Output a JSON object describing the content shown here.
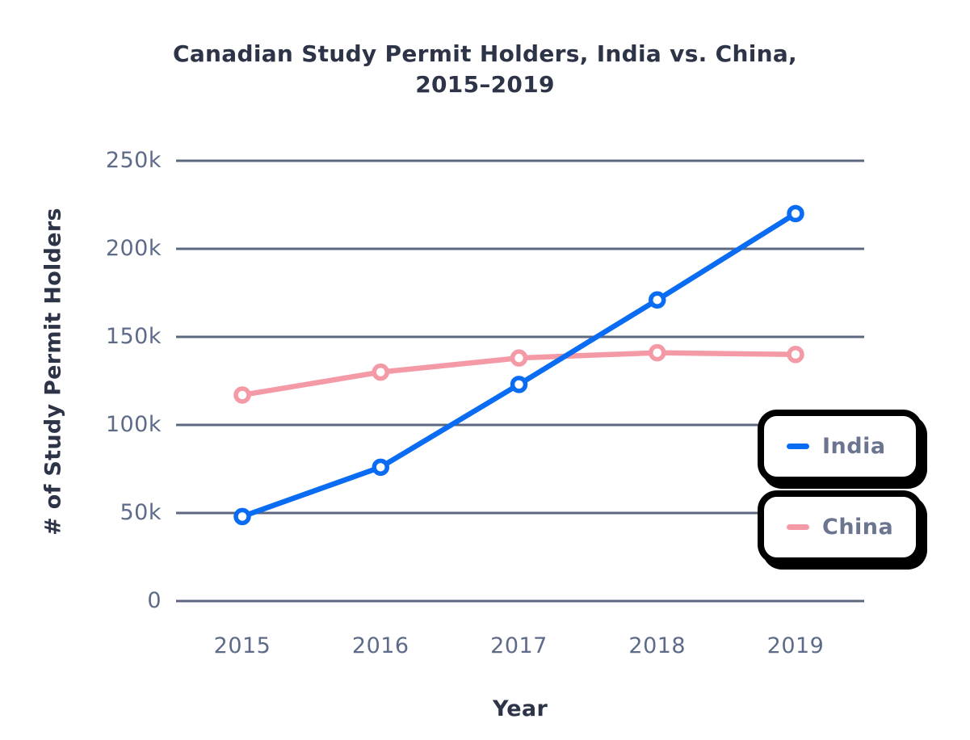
{
  "title": {
    "line1": "Canadian Study Permit Holders, India vs. China,",
    "line2": "2015–2019"
  },
  "chart_data": {
    "type": "line",
    "title": "Canadian Study Permit Holders, India vs. China, 2015–2019",
    "xlabel": "Year",
    "ylabel": "# of Study Permit Holders",
    "categories": [
      "2015",
      "2016",
      "2017",
      "2018",
      "2019"
    ],
    "unit": "thousands",
    "series": [
      {
        "name": "India",
        "color": "#0a6cf2",
        "values": [
          48,
          76,
          123,
          171,
          220
        ]
      },
      {
        "name": "China",
        "color": "#f49aa6",
        "values": [
          117,
          130,
          138,
          141,
          140
        ]
      }
    ],
    "ylim": [
      0,
      250
    ],
    "ytick_values": [
      250,
      200,
      150,
      100,
      50,
      0
    ],
    "ytick_labels": [
      "250k",
      "200k",
      "150k",
      "100k",
      "50k",
      "0"
    ],
    "grid": "horizontal",
    "legend_position": "right-inside"
  },
  "legend": {
    "items": [
      {
        "label": "India",
        "color": "#0a6cf2"
      },
      {
        "label": "China",
        "color": "#f49aa6"
      }
    ]
  },
  "colors": {
    "title_text": "#2e3447",
    "tick_text": "#5e6b88",
    "legend_text": "#6b7590",
    "gridline": "#5d6880",
    "india_line": "#0a6cf2",
    "china_line": "#f49aa6",
    "legend_border": "#000000",
    "background": "#ffffff"
  }
}
